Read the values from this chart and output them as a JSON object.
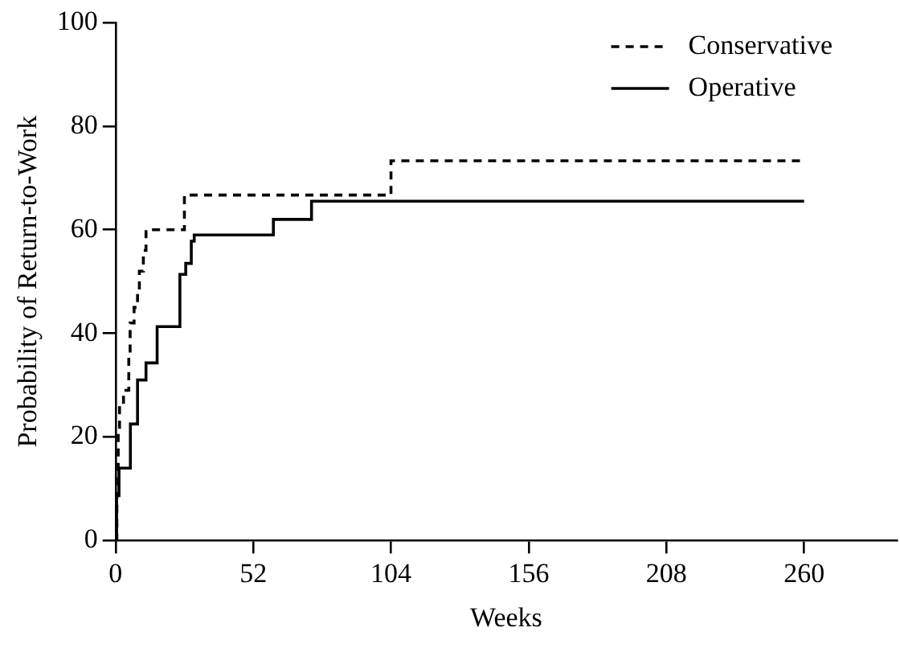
{
  "chart_data": {
    "type": "step",
    "xlabel": "Weeks",
    "ylabel": "Probability of Return-to-Work",
    "xlim": [
      0,
      295
    ],
    "xticks": [
      0,
      52,
      104,
      156,
      208,
      260
    ],
    "ylim": [
      0,
      100
    ],
    "yticks": [
      0,
      20,
      40,
      60,
      80,
      100
    ],
    "grid": false,
    "legend": "top right",
    "series": [
      {
        "name": "Conservative",
        "color": "#000000",
        "line_style": "dashed",
        "x": [
          0,
          0.5,
          1,
          1.5,
          3,
          5,
          5.5,
          7,
          8.3,
          9,
          10.5,
          11.5,
          26,
          104,
          260
        ],
        "values": [
          0,
          9,
          21,
          26,
          29,
          36,
          42,
          45,
          48,
          52,
          56,
          60,
          66.7,
          73.3,
          73.3
        ]
      },
      {
        "name": "Operative",
        "color": "#000000",
        "line_style": "solid",
        "x": [
          0,
          0.4,
          1.3,
          5.6,
          8.3,
          11.5,
          15.7,
          24.3,
          26.5,
          28.6,
          29.7,
          59.6,
          74,
          260
        ],
        "values": [
          0,
          8.7,
          14,
          22.5,
          31,
          34.3,
          41.3,
          51.4,
          53.5,
          57.8,
          59,
          62,
          65.5,
          65.5
        ]
      }
    ]
  }
}
